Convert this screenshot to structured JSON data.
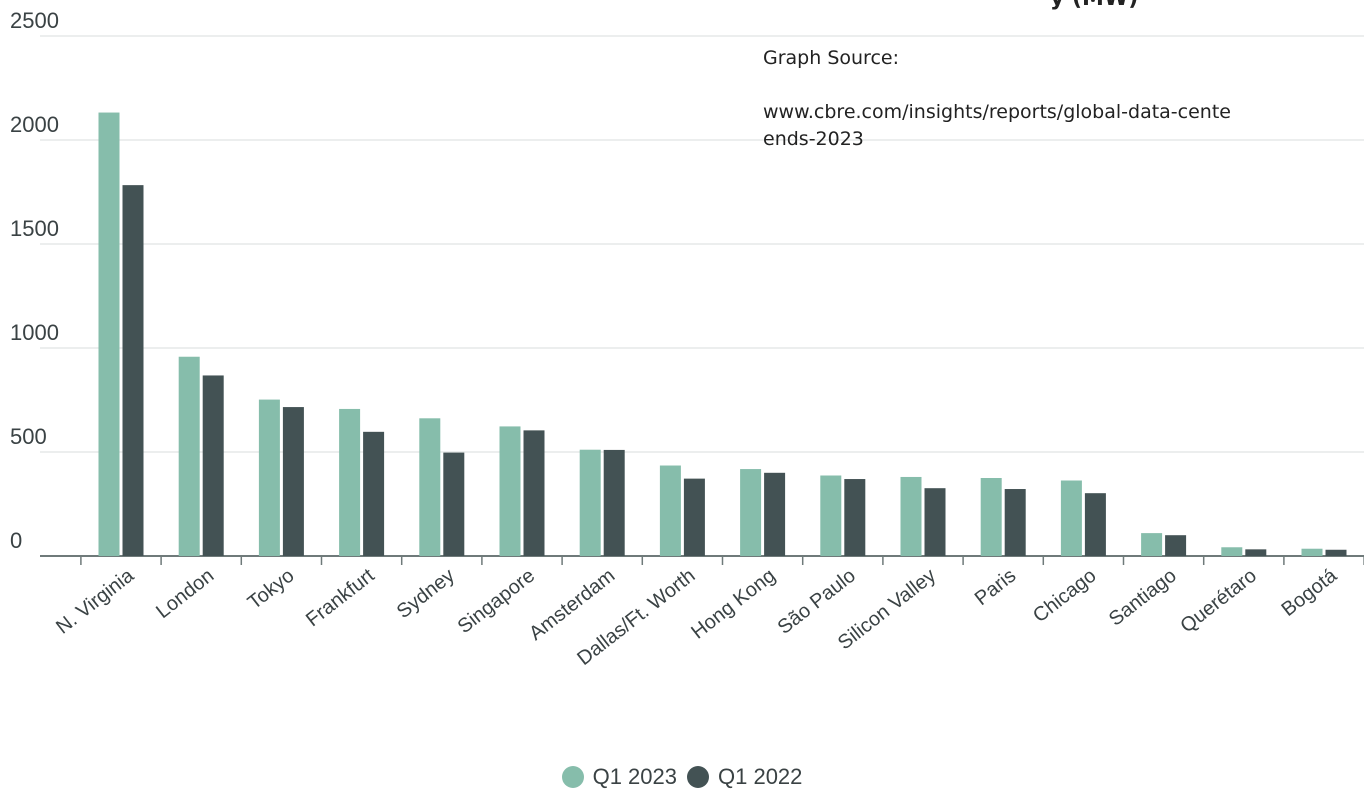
{
  "source": {
    "label": "Graph Source:",
    "url": "www.cbre.com/insights/reports/global-data-cente\nends-2023",
    "cut_title": "y (MW)"
  },
  "colors": {
    "q1_2023": "#86bdab",
    "q1_2022": "#435254",
    "grid": "#d9dcdc",
    "axis": "#6f7a7a"
  },
  "chart_data": {
    "type": "bar",
    "title": "",
    "xlabel": "",
    "ylabel": "",
    "ylim": [
      0,
      2500
    ],
    "yticks": [
      0,
      500,
      1000,
      1500,
      2000,
      2500
    ],
    "grid": true,
    "legend_position": "bottom",
    "categories": [
      "N. Virginia",
      "London",
      "Tokyo",
      "Frankfurt",
      "Sydney",
      "Singapore",
      "Amsterdam",
      "Dallas/Ft. Worth",
      "Hong Kong",
      "São Paulo",
      "Silicon Valley",
      "Paris",
      "Chicago",
      "Santiago",
      "Querétaro",
      "Bogotá"
    ],
    "series": [
      {
        "name": "Q1 2023",
        "values": [
          2132,
          958,
          752,
          707,
          662,
          623,
          511,
          435,
          418,
          387,
          380,
          375,
          363,
          110,
          42,
          35
        ]
      },
      {
        "name": "Q1 2022",
        "values": [
          1783,
          868,
          716,
          597,
          497,
          604,
          510,
          372,
          400,
          370,
          326,
          322,
          302,
          100,
          32,
          30
        ]
      }
    ]
  }
}
